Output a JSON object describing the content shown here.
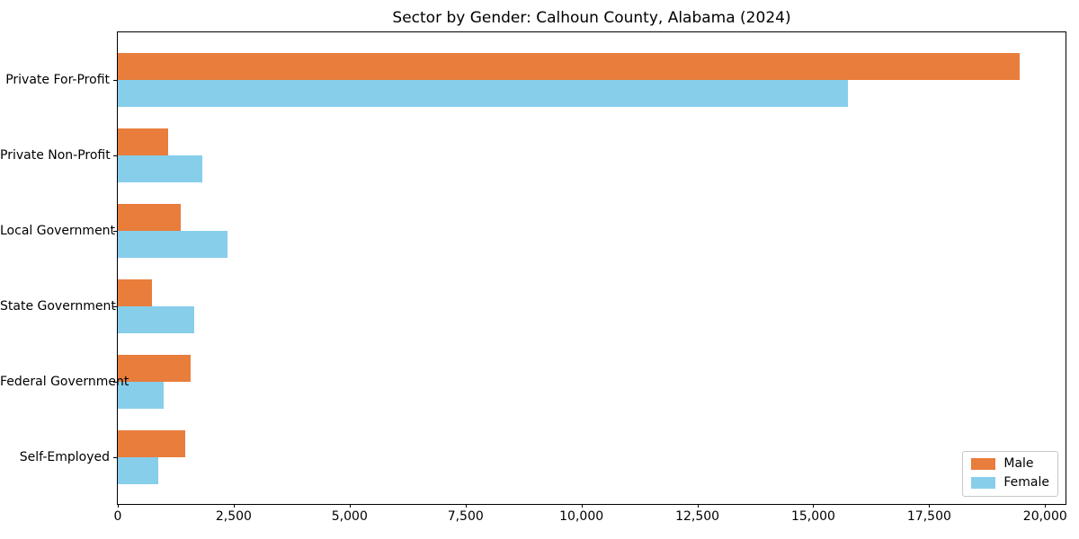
{
  "chart_data": {
    "type": "bar",
    "orientation": "horizontal",
    "title": "Sector by Gender: Calhoun County, Alabama (2024)",
    "categories": [
      "Private For-Profit",
      "Private Non-Profit",
      "Local Government",
      "State Government",
      "Federal Government",
      "Self-Employed"
    ],
    "series": [
      {
        "name": "Male",
        "color": "#E87D3C",
        "values": [
          19450,
          1090,
          1360,
          730,
          1580,
          1450
        ]
      },
      {
        "name": "Female",
        "color": "#87CEEB",
        "values": [
          15740,
          1820,
          2360,
          1650,
          980,
          870
        ]
      }
    ],
    "xlabel": "",
    "ylabel": "",
    "xlim": [
      0,
      20440
    ],
    "xticks": {
      "values": [
        0,
        2500,
        5000,
        7500,
        10000,
        12500,
        15000,
        17500,
        20000
      ],
      "labels": [
        "0",
        "2,500",
        "5,000",
        "7,500",
        "10,000",
        "12,500",
        "15,000",
        "17,500",
        "20,000"
      ]
    },
    "grid": false,
    "legend": {
      "position": "lower right"
    }
  },
  "colors": {
    "background": "#ffffff",
    "spine": "#000000",
    "text": "#000000",
    "legend_border": "#c8c8c8"
  }
}
